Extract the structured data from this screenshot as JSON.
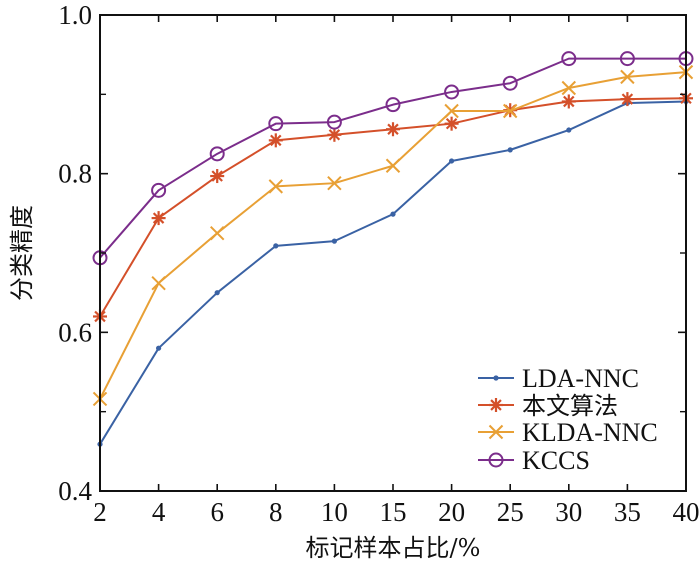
{
  "chart_data": {
    "type": "line",
    "title": "",
    "xlabel": "标记样本占比/%",
    "ylabel": "分类精度",
    "categories": [
      "2",
      "4",
      "6",
      "8",
      "10",
      "15",
      "20",
      "25",
      "30",
      "35",
      "40"
    ],
    "ylim": [
      0.4,
      1.0
    ],
    "yticks": [
      "0.4",
      "0.6",
      "0.8",
      "1.0"
    ],
    "yminor_ticks": [
      0.5,
      0.7,
      0.9
    ],
    "grid": false,
    "legend_position": "bottom-right",
    "series": [
      {
        "name": "LDA-NNC",
        "color": "#3a62a4",
        "marker": "dot",
        "values": [
          0.459,
          0.58,
          0.65,
          0.709,
          0.715,
          0.749,
          0.816,
          0.83,
          0.855,
          0.889,
          0.891
        ]
      },
      {
        "name": "本文算法",
        "color": "#d4502a",
        "marker": "asterisk",
        "values": [
          0.62,
          0.744,
          0.797,
          0.842,
          0.849,
          0.856,
          0.863,
          0.88,
          0.891,
          0.894,
          0.895
        ]
      },
      {
        "name": "KLDA-NNC",
        "color": "#e8a035",
        "marker": "cross",
        "values": [
          0.516,
          0.662,
          0.725,
          0.784,
          0.788,
          0.81,
          0.879,
          0.879,
          0.908,
          0.922,
          0.928
        ]
      },
      {
        "name": "KCCS",
        "color": "#7b2d8b",
        "marker": "circle",
        "values": [
          0.694,
          0.779,
          0.825,
          0.863,
          0.865,
          0.887,
          0.903,
          0.914,
          0.945,
          0.945,
          0.945
        ]
      }
    ]
  }
}
